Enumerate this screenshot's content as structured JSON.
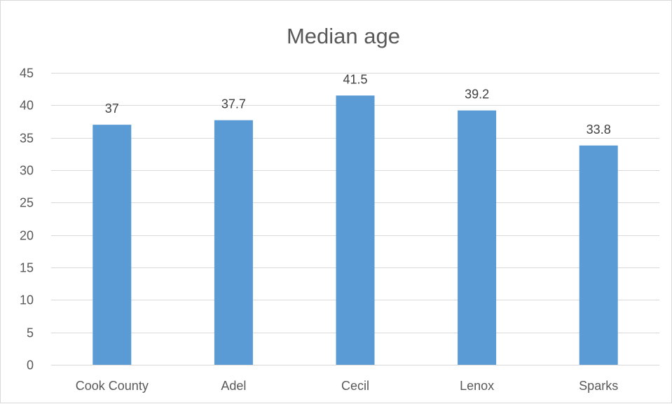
{
  "chart_data": {
    "type": "bar",
    "title": "Median age",
    "categories": [
      "Cook County",
      "Adel",
      "Cecil",
      "Lenox",
      "Sparks"
    ],
    "series": [
      {
        "values": [
          37,
          37.7,
          41.5,
          39.2,
          33.8
        ]
      }
    ],
    "data_labels": [
      "37",
      "37.7",
      "41.5",
      "39.2",
      "33.8"
    ],
    "y_ticks": [
      0,
      5,
      10,
      15,
      20,
      25,
      30,
      35,
      40,
      45
    ],
    "ylim": [
      0,
      45
    ],
    "xlabel": "",
    "ylabel": "",
    "grid": true,
    "legend": "none",
    "colors": {
      "bar": "#5b9bd5",
      "grid": "#d9d9d9",
      "text": "#595959"
    }
  }
}
